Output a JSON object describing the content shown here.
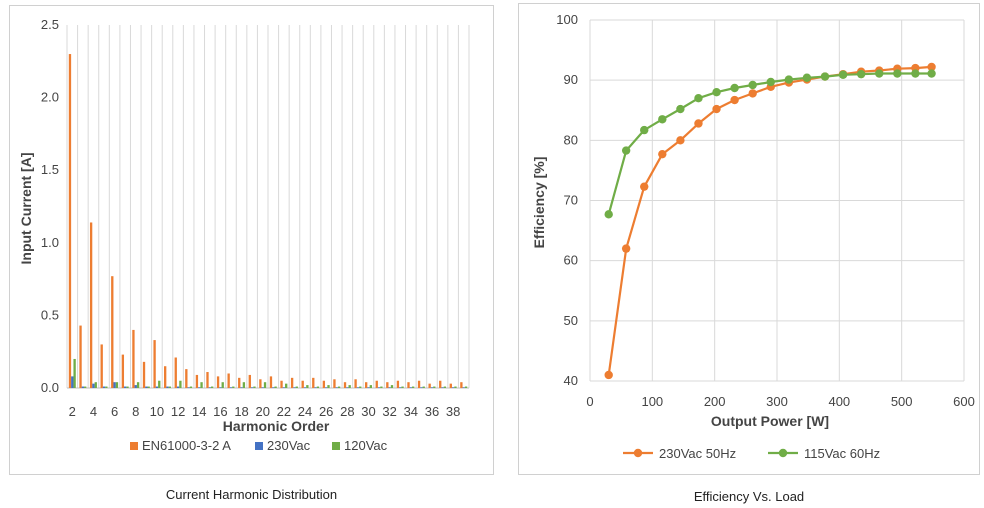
{
  "chart_data": [
    {
      "type": "bar",
      "caption": "Current Harmonic Distribution",
      "xlabel": "Harmonic Order",
      "ylabel": "Input Current [A]",
      "ylim": [
        0,
        2.5
      ],
      "yticks": [
        "0.0",
        "0.5",
        "1.0",
        "1.5",
        "2.0",
        "2.5"
      ],
      "grid": "vertical",
      "legend_position": "bottom",
      "categories": [
        2,
        3,
        4,
        5,
        6,
        7,
        8,
        9,
        10,
        11,
        12,
        13,
        14,
        15,
        16,
        17,
        18,
        19,
        20,
        21,
        22,
        23,
        24,
        25,
        26,
        27,
        28,
        29,
        30,
        31,
        32,
        33,
        34,
        35,
        36,
        37,
        38,
        39
      ],
      "xticks": [
        "2",
        "4",
        "6",
        "8",
        "10",
        "12",
        "14",
        "16",
        "18",
        "20",
        "22",
        "24",
        "26",
        "28",
        "30",
        "32",
        "34",
        "36",
        "38"
      ],
      "series": [
        {
          "name": "EN61000-3-2 A",
          "color": "#ed7d31",
          "values": [
            2.3,
            0.43,
            1.14,
            0.3,
            0.77,
            0.23,
            0.4,
            0.18,
            0.33,
            0.15,
            0.21,
            0.13,
            0.09,
            0.11,
            0.08,
            0.1,
            0.07,
            0.09,
            0.06,
            0.08,
            0.05,
            0.07,
            0.05,
            0.07,
            0.05,
            0.06,
            0.04,
            0.06,
            0.04,
            0.05,
            0.04,
            0.05,
            0.04,
            0.05,
            0.03,
            0.05,
            0.03,
            0.04
          ]
        },
        {
          "name": "230Vac",
          "color": "#4472c4",
          "values": [
            0.08,
            0.01,
            0.03,
            0.01,
            0.04,
            0.01,
            0.02,
            0.01,
            0.01,
            0.01,
            0.01,
            0.005,
            0.005,
            0.005,
            0.005,
            0.005,
            0.005,
            0.005,
            0.005,
            0.005,
            0.005,
            0.005,
            0.005,
            0.005,
            0.005,
            0.005,
            0.005,
            0.005,
            0.005,
            0.005,
            0.005,
            0.005,
            0.005,
            0.005,
            0.005,
            0.005,
            0.005,
            0.005
          ]
        },
        {
          "name": "120Vac",
          "color": "#70ad47",
          "values": [
            0.2,
            0.01,
            0.04,
            0.01,
            0.04,
            0.01,
            0.04,
            0.01,
            0.05,
            0.01,
            0.05,
            0.01,
            0.04,
            0.01,
            0.04,
            0.01,
            0.04,
            0.01,
            0.04,
            0.01,
            0.03,
            0.01,
            0.02,
            0.01,
            0.02,
            0.01,
            0.02,
            0.01,
            0.02,
            0.01,
            0.02,
            0.01,
            0.01,
            0.01,
            0.01,
            0.01,
            0.01,
            0.01
          ]
        }
      ]
    },
    {
      "type": "line",
      "caption": "Efficiency Vs. Load",
      "xlabel": "Output Power [W]",
      "ylabel": "Efficiency [%]",
      "xlim": [
        0,
        600
      ],
      "ylim": [
        40,
        100
      ],
      "xticks": [
        "0",
        "100",
        "200",
        "300",
        "400",
        "500",
        "600"
      ],
      "yticks": [
        "40",
        "50",
        "60",
        "70",
        "80",
        "90",
        "100"
      ],
      "grid": "both",
      "legend_position": "bottom",
      "series": [
        {
          "name": "230Vac  50Hz",
          "color": "#ed7d31",
          "x": [
            30,
            58,
            87,
            116,
            145,
            174,
            203,
            232,
            261,
            290,
            319,
            348,
            377,
            406,
            435,
            464,
            493,
            522,
            548
          ],
          "y": [
            41,
            62,
            72.3,
            77.7,
            80,
            82.8,
            85.2,
            86.7,
            87.8,
            88.9,
            89.6,
            90.1,
            90.6,
            91.0,
            91.4,
            91.6,
            91.9,
            92.0,
            92.2
          ]
        },
        {
          "name": "115Vac  60Hz",
          "color": "#70ad47",
          "x": [
            30,
            58,
            87,
            116,
            145,
            174,
            203,
            232,
            261,
            290,
            319,
            348,
            377,
            406,
            435,
            464,
            493,
            522,
            548
          ],
          "y": [
            67.7,
            78.3,
            81.7,
            83.5,
            85.2,
            87.0,
            88.0,
            88.7,
            89.2,
            89.7,
            90.1,
            90.4,
            90.6,
            90.9,
            91.0,
            91.1,
            91.1,
            91.1,
            91.1
          ]
        }
      ]
    }
  ]
}
